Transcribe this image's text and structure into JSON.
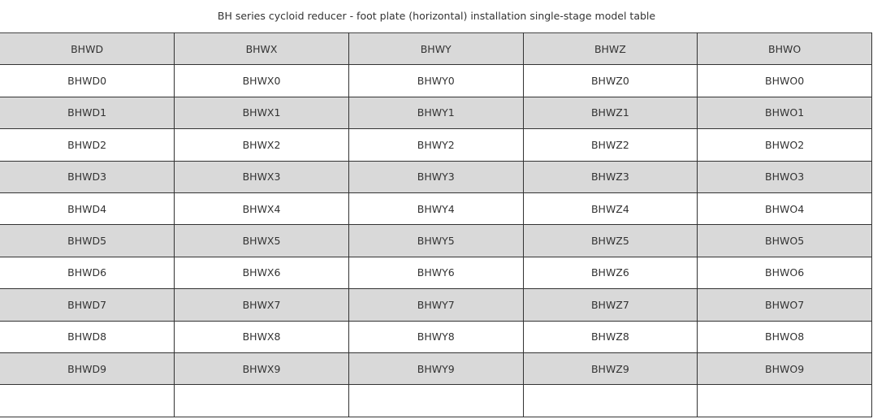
{
  "title": "BH series cycloid reducer - foot plate (horizontal) installation single-stage model table",
  "colors": {
    "stripe": "#d9d9d9",
    "border": "#333333",
    "text": "#333333"
  },
  "table": {
    "headers": [
      "BHWD",
      "BHWX",
      "BHWY",
      "BHWZ",
      "BHWO"
    ],
    "rows": [
      [
        "BHWD0",
        "BHWX0",
        "BHWY0",
        "BHWZ0",
        "BHWO0"
      ],
      [
        "BHWD1",
        "BHWX1",
        "BHWY1",
        "BHWZ1",
        "BHWO1"
      ],
      [
        "BHWD2",
        "BHWX2",
        "BHWY2",
        "BHWZ2",
        "BHWO2"
      ],
      [
        "BHWD3",
        "BHWX3",
        "BHWY3",
        "BHWZ3",
        "BHWO3"
      ],
      [
        "BHWD4",
        "BHWX4",
        "BHWY4",
        "BHWZ4",
        "BHWO4"
      ],
      [
        "BHWD5",
        "BHWX5",
        "BHWY5",
        "BHWZ5",
        "BHWO5"
      ],
      [
        "BHWD6",
        "BHWX6",
        "BHWY6",
        "BHWZ6",
        "BHWO6"
      ],
      [
        "BHWD7",
        "BHWX7",
        "BHWY7",
        "BHWZ7",
        "BHWO7"
      ],
      [
        "BHWD8",
        "BHWX8",
        "BHWY8",
        "BHWZ8",
        "BHWO8"
      ],
      [
        "BHWD9",
        "BHWX9",
        "BHWY9",
        "BHWZ9",
        "BHWO9"
      ],
      [
        "",
        "",
        "",
        "",
        ""
      ]
    ]
  }
}
